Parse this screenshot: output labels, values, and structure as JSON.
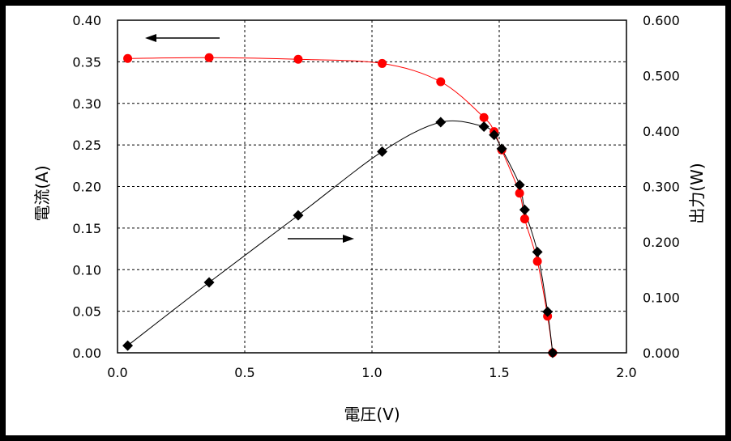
{
  "chart_data": {
    "type": "scatter",
    "x": {
      "label": "電圧(V)",
      "lim": [
        0.0,
        2.0
      ],
      "ticks": [
        "0.0",
        "0.5",
        "1.0",
        "1.5",
        "2.0"
      ]
    },
    "y_left": {
      "label": "電流(A)",
      "lim": [
        0.0,
        0.4
      ],
      "ticks": [
        "0.00",
        "0.05",
        "0.10",
        "0.15",
        "0.20",
        "0.25",
        "0.30",
        "0.35",
        "0.40"
      ]
    },
    "y_right": {
      "label": "出力(W)",
      "lim": [
        0.0,
        0.6
      ],
      "ticks": [
        "0.000",
        "0.100",
        "0.200",
        "0.300",
        "0.400",
        "0.500",
        "0.600"
      ]
    },
    "grid": true,
    "series": [
      {
        "axis": "left",
        "marker": "circle",
        "color": "#ff0000",
        "points": [
          [
            0.04,
            0.354
          ],
          [
            0.36,
            0.355
          ],
          [
            0.71,
            0.353
          ],
          [
            1.04,
            0.348
          ],
          [
            1.27,
            0.326
          ],
          [
            1.44,
            0.283
          ],
          [
            1.48,
            0.266
          ],
          [
            1.51,
            0.244
          ],
          [
            1.58,
            0.192
          ],
          [
            1.6,
            0.161
          ],
          [
            1.65,
            0.11
          ],
          [
            1.69,
            0.044
          ],
          [
            1.71,
            0.0
          ]
        ]
      },
      {
        "axis": "right",
        "marker": "diamond",
        "color": "#000000",
        "points": [
          [
            0.04,
            0.013
          ],
          [
            0.36,
            0.127
          ],
          [
            0.71,
            0.248
          ],
          [
            1.04,
            0.363
          ],
          [
            1.27,
            0.416
          ],
          [
            1.44,
            0.408
          ],
          [
            1.48,
            0.393
          ],
          [
            1.51,
            0.368
          ],
          [
            1.58,
            0.303
          ],
          [
            1.6,
            0.258
          ],
          [
            1.65,
            0.182
          ],
          [
            1.69,
            0.074
          ],
          [
            1.71,
            0.0
          ]
        ]
      }
    ],
    "annotations": [
      {
        "type": "arrow",
        "direction": "left",
        "refers_to": "left-axis"
      },
      {
        "type": "arrow",
        "direction": "right",
        "refers_to": "right-axis"
      }
    ]
  }
}
